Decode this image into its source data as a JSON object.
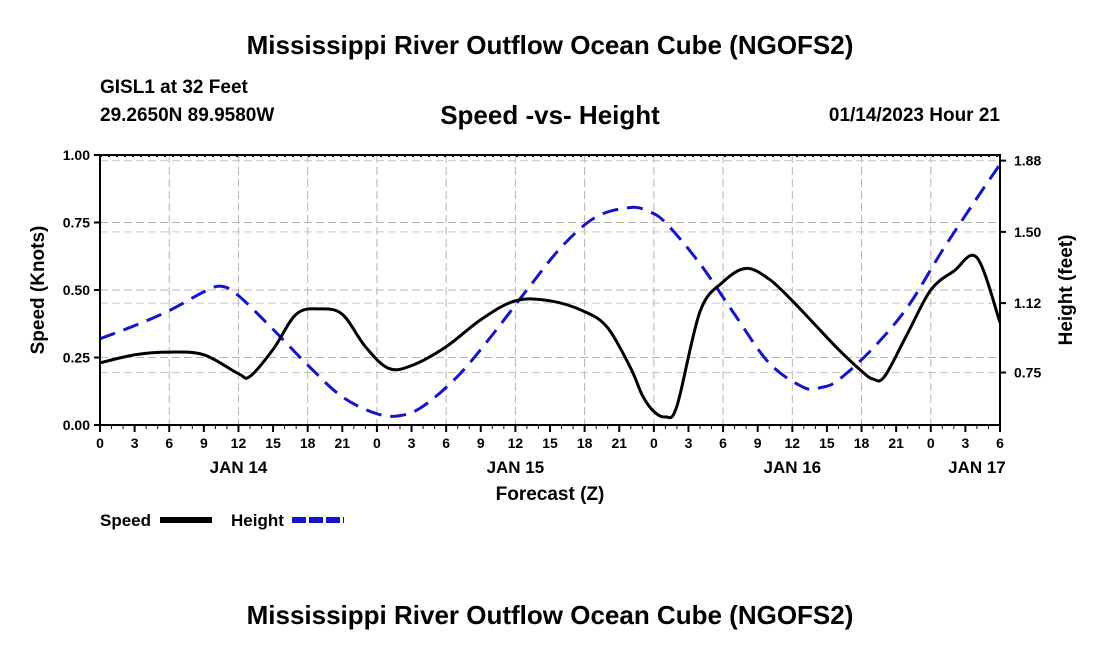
{
  "chart_data": {
    "type": "line",
    "title": "Mississippi River Outflow Ocean Cube (NGOFS2)",
    "footer_title": "Mississippi River Outflow Ocean Cube (NGOFS2)",
    "station": "GISL1 at 32 Feet",
    "coordinates": "29.2650N  89.9580W",
    "subtitle": "Speed -vs- Height",
    "datetime": "01/14/2023 Hour 21",
    "xlabel": "Forecast (Z)",
    "ylabel_left": "Speed (Knots)",
    "ylabel_right": "Height (feet)",
    "x_range_hours": [
      0,
      78
    ],
    "ylim_left": [
      0,
      1.0
    ],
    "ylim_right": [
      0.47,
      1.91
    ],
    "left_ticks": [
      "0.00",
      "0.25",
      "0.50",
      "0.75",
      "1.00"
    ],
    "right_ticks": [
      "0.75",
      "1.12",
      "1.50",
      "1.88"
    ],
    "x_tick_labels": [
      "0",
      "3",
      "6",
      "9",
      "12",
      "15",
      "18",
      "21",
      "0",
      "3",
      "6",
      "9",
      "12",
      "15",
      "18",
      "21",
      "0",
      "3",
      "6",
      "9",
      "12",
      "15",
      "18",
      "21",
      "0",
      "3",
      "6"
    ],
    "date_labels": [
      {
        "label": "JAN 14",
        "hour": 12
      },
      {
        "label": "JAN 15",
        "hour": 36
      },
      {
        "label": "JAN 16",
        "hour": 60
      },
      {
        "label": "JAN 17",
        "hour": 76
      }
    ],
    "series": [
      {
        "name": "Speed",
        "axis": "left",
        "color": "#000000",
        "style": "solid",
        "x": [
          0,
          3,
          6,
          9,
          12,
          13,
          15,
          17,
          19,
          21,
          23,
          25,
          27,
          30,
          33,
          36,
          39,
          42,
          44,
          46,
          47,
          48,
          49,
          50,
          52,
          54,
          56,
          58,
          60,
          62,
          64,
          66,
          67,
          68,
          70,
          72,
          74,
          76,
          78
        ],
        "y": [
          0.23,
          0.26,
          0.27,
          0.26,
          0.19,
          0.18,
          0.28,
          0.41,
          0.43,
          0.41,
          0.29,
          0.21,
          0.22,
          0.29,
          0.39,
          0.46,
          0.46,
          0.42,
          0.36,
          0.21,
          0.11,
          0.05,
          0.03,
          0.07,
          0.42,
          0.53,
          0.58,
          0.54,
          0.46,
          0.37,
          0.28,
          0.2,
          0.17,
          0.18,
          0.34,
          0.5,
          0.57,
          0.62,
          0.38
        ]
      },
      {
        "name": "Height",
        "axis": "right",
        "color": "#1414c8",
        "style": "dashed",
        "x": [
          0,
          3,
          6,
          9,
          10.5,
          12,
          15,
          18,
          21,
          24,
          26,
          28,
          31,
          34,
          37,
          40,
          43,
          46,
          47.5,
          49,
          52,
          55,
          58,
          61,
          62.5,
          64,
          67,
          70,
          73,
          76,
          78
        ],
        "y": [
          0.93,
          1.0,
          1.08,
          1.18,
          1.21,
          1.16,
          0.98,
          0.79,
          0.62,
          0.53,
          0.52,
          0.57,
          0.73,
          0.95,
          1.19,
          1.42,
          1.58,
          1.63,
          1.61,
          1.55,
          1.33,
          1.06,
          0.8,
          0.67,
          0.67,
          0.71,
          0.88,
          1.1,
          1.4,
          1.68,
          1.86
        ]
      }
    ],
    "legend": [
      {
        "label": "Speed",
        "color": "#000000",
        "style": "solid"
      },
      {
        "label": "Height",
        "color": "#1414c8",
        "style": "dashed"
      }
    ]
  }
}
